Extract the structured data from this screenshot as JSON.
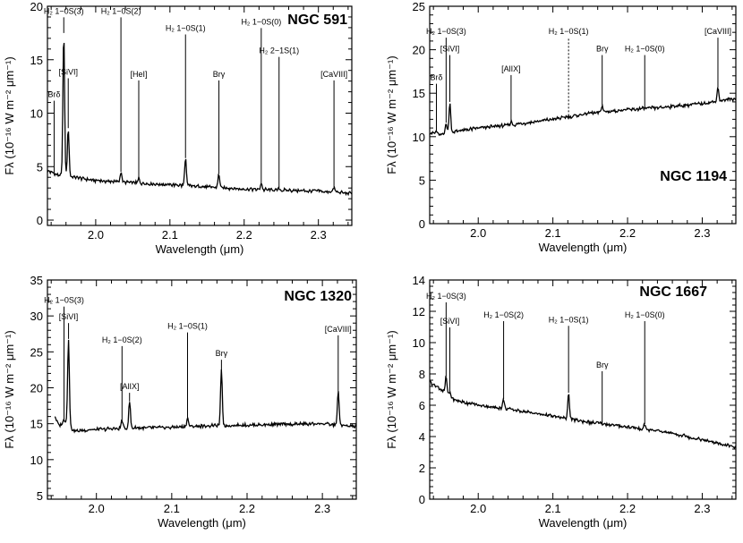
{
  "chart_data": [
    {
      "type": "line",
      "title": "NGC 591",
      "xlabel": "Wavelength (μm)",
      "ylabel": "Fλ (10⁻¹⁶ W m⁻² μm⁻¹)",
      "xlim": [
        1.935,
        2.345
      ],
      "ylim": [
        -0.5,
        20
      ],
      "xticks": [
        2.0,
        2.1,
        2.2,
        2.3
      ],
      "xtick_labels": [
        "2.0",
        "2.1",
        "2.2",
        "2.3"
      ],
      "yticks": [
        0,
        5,
        10,
        15,
        20
      ],
      "ytick_labels": [
        "0",
        "5",
        "10",
        "15",
        "20"
      ],
      "continuum": [
        [
          1.935,
          4.6
        ],
        [
          1.95,
          4.2
        ],
        [
          1.97,
          4.0
        ],
        [
          2.0,
          3.7
        ],
        [
          2.05,
          3.5
        ],
        [
          2.1,
          3.3
        ],
        [
          2.15,
          3.1
        ],
        [
          2.2,
          2.9
        ],
        [
          2.25,
          2.8
        ],
        [
          2.3,
          2.7
        ],
        [
          2.345,
          2.5
        ]
      ],
      "features": [
        {
          "label": "Brδ",
          "x": 1.944,
          "peak": 4.4,
          "label_y": 11.5
        },
        {
          "label": "H₂ 1−0S(3)",
          "x": 1.957,
          "peak": 17.5,
          "label_y": 19.3
        },
        {
          "label": "[SiVI]",
          "x": 1.963,
          "peak": 8.6,
          "label_y": 13.6
        },
        {
          "label": "H₂ 1−0S(2)",
          "x": 2.034,
          "peak": 4.5,
          "label_y": 19.3
        },
        {
          "label": "[HeI]",
          "x": 2.058,
          "peak": 3.9,
          "label_y": 13.4
        },
        {
          "label": "H₂ 1−0S(1)",
          "x": 2.121,
          "peak": 5.8,
          "label_y": 17.7
        },
        {
          "label": "Brγ",
          "x": 2.166,
          "peak": 4.3,
          "label_y": 13.4
        },
        {
          "label": "H₂ 1−0S(0)",
          "x": 2.223,
          "peak": 3.5,
          "label_y": 18.3
        },
        {
          "label": "H₂ 2−1S(1)",
          "x": 2.247,
          "peak": 3.0,
          "label_y": 15.6
        },
        {
          "label": "[CaVIII]",
          "x": 2.321,
          "peak": 3.0,
          "label_y": 13.4
        }
      ]
    },
    {
      "type": "line",
      "title": "NGC 1194",
      "xlabel": "Wavelength (μm)",
      "ylabel": "Fλ (10⁻¹⁶ W m⁻² μm⁻¹)",
      "xlim": [
        1.935,
        2.345
      ],
      "ylim": [
        0,
        25
      ],
      "xticks": [
        2.0,
        2.1,
        2.2,
        2.3
      ],
      "xtick_labels": [
        "2.0",
        "2.1",
        "2.2",
        "2.3"
      ],
      "yticks": [
        0,
        5,
        10,
        15,
        20,
        25
      ],
      "ytick_labels": [
        "0",
        "5",
        "10",
        "15",
        "20",
        "25"
      ],
      "continuum": [
        [
          1.935,
          10.5
        ],
        [
          1.95,
          10.2
        ],
        [
          1.97,
          10.6
        ],
        [
          2.0,
          11.0
        ],
        [
          2.05,
          11.4
        ],
        [
          2.1,
          12.0
        ],
        [
          2.15,
          12.7
        ],
        [
          2.2,
          13.1
        ],
        [
          2.25,
          13.4
        ],
        [
          2.3,
          13.8
        ],
        [
          2.345,
          14.4
        ]
      ],
      "features": [
        {
          "label": "Brδ",
          "x": 1.944,
          "peak": 10.6,
          "label_y": 16.5
        },
        {
          "label": "H₂ 1−0S(3)",
          "x": 1.957,
          "peak": 11.6,
          "label_y": 21.8
        },
        {
          "label": "[SiVI]",
          "x": 1.962,
          "peak": 14.0,
          "label_y": 19.8
        },
        {
          "label": "[AlIX]",
          "x": 2.044,
          "peak": 11.8,
          "label_y": 17.5
        },
        {
          "label": "H₂ 1−0S(1)",
          "x": 2.121,
          "peak": 12.0,
          "label_y": 21.8,
          "dotted": true
        },
        {
          "label": "Brγ",
          "x": 2.166,
          "peak": 13.6,
          "label_y": 19.8
        },
        {
          "label": "H₂ 1−0S(0)",
          "x": 2.223,
          "peak": 13.2,
          "label_y": 19.8
        },
        {
          "label": "[CaVIII]",
          "x": 2.321,
          "peak": 15.6,
          "label_y": 21.8
        }
      ]
    },
    {
      "type": "line",
      "title": "NGC 1320",
      "xlabel": "Wavelength (μm)",
      "ylabel": "Fλ (10⁻¹⁶ W m⁻² μm⁻¹)",
      "xlim": [
        1.935,
        2.345
      ],
      "ylim": [
        4.5,
        35
      ],
      "xticks": [
        2.0,
        2.1,
        2.2,
        2.3
      ],
      "xtick_labels": [
        "2.0",
        "2.1",
        "2.2",
        "2.3"
      ],
      "yticks": [
        5,
        10,
        15,
        20,
        25,
        30,
        35
      ],
      "ytick_labels": [
        "5",
        "10",
        "15",
        "20",
        "25",
        "30",
        "35"
      ],
      "continuum": [
        [
          1.945,
          16.0
        ],
        [
          1.95,
          14.8
        ],
        [
          1.96,
          15.2
        ],
        [
          1.97,
          14.0
        ],
        [
          2.0,
          14.2
        ],
        [
          2.05,
          14.4
        ],
        [
          2.1,
          14.5
        ],
        [
          2.15,
          14.7
        ],
        [
          2.2,
          14.8
        ],
        [
          2.25,
          14.9
        ],
        [
          2.3,
          15.0
        ],
        [
          2.345,
          14.6
        ]
      ],
      "features": [
        {
          "label": "H₂ 1−0S(3)",
          "x": 1.957,
          "peak": 15.5,
          "label_y": 31.8
        },
        {
          "label": "[SiVI]",
          "x": 1.963,
          "peak": 26.8,
          "label_y": 29.5
        },
        {
          "label": "H₂ 1−0S(2)",
          "x": 2.034,
          "peak": 15.5,
          "label_y": 26.3
        },
        {
          "label": "[AlIX]",
          "x": 2.044,
          "peak": 18.1,
          "label_y": 19.8
        },
        {
          "label": "H₂ 1−0S(1)",
          "x": 2.121,
          "peak": 15.8,
          "label_y": 28.2
        },
        {
          "label": "Brγ",
          "x": 2.166,
          "peak": 22.5,
          "label_y": 24.4
        },
        {
          "label": "[CaVIII]",
          "x": 2.321,
          "peak": 19.5,
          "label_y": 27.8
        }
      ]
    },
    {
      "type": "line",
      "title": "NGC 1667",
      "xlabel": "Wavelength (μm)",
      "ylabel": "Fλ (10⁻¹⁶ W m⁻² μm⁻¹)",
      "xlim": [
        1.935,
        2.345
      ],
      "ylim": [
        0,
        14
      ],
      "xticks": [
        2.0,
        2.1,
        2.2,
        2.3
      ],
      "xtick_labels": [
        "2.0",
        "2.1",
        "2.2",
        "2.3"
      ],
      "yticks": [
        0,
        2,
        4,
        6,
        8,
        10,
        12,
        14
      ],
      "ytick_labels": [
        "0",
        "2",
        "4",
        "6",
        "8",
        "10",
        "12",
        "14"
      ],
      "continuum": [
        [
          1.935,
          7.5
        ],
        [
          1.95,
          7.0
        ],
        [
          1.97,
          6.3
        ],
        [
          2.0,
          6.0
        ],
        [
          2.05,
          5.7
        ],
        [
          2.1,
          5.3
        ],
        [
          2.15,
          4.9
        ],
        [
          2.2,
          4.6
        ],
        [
          2.25,
          4.3
        ],
        [
          2.3,
          3.8
        ],
        [
          2.345,
          3.3
        ]
      ],
      "features": [
        {
          "label": "H₂ 1−0S(3)",
          "x": 1.957,
          "peak": 7.8,
          "label_y": 12.8
        },
        {
          "label": "[SiVI]",
          "x": 1.962,
          "peak": 6.8,
          "label_y": 11.2
        },
        {
          "label": "H₂ 1−0S(2)",
          "x": 2.034,
          "peak": 6.4,
          "label_y": 11.6
        },
        {
          "label": "H₂ 1−0S(1)",
          "x": 2.121,
          "peak": 6.8,
          "label_y": 11.3
        },
        {
          "label": "Brγ",
          "x": 2.166,
          "peak": 4.8,
          "label_y": 8.4
        },
        {
          "label": "H₂ 1−0S(0)",
          "x": 2.223,
          "peak": 4.8,
          "label_y": 11.6
        }
      ]
    }
  ]
}
